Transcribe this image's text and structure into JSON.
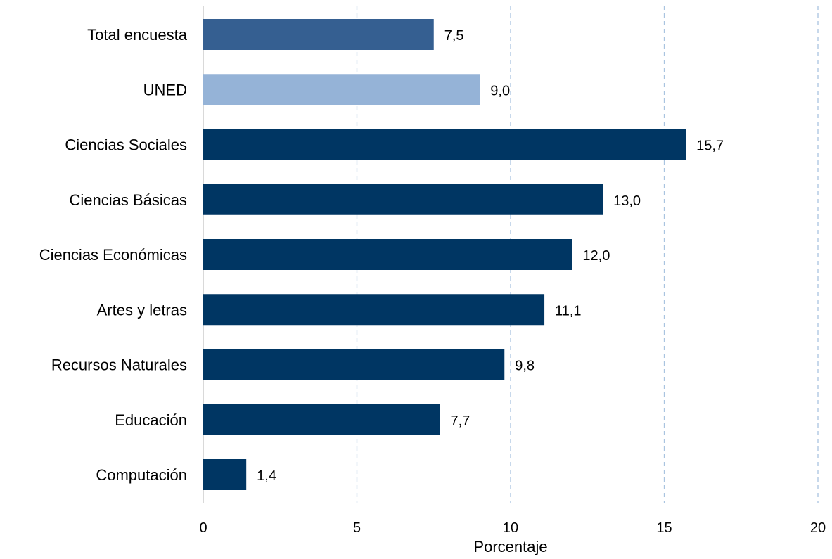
{
  "chart_data": {
    "type": "bar",
    "orientation": "horizontal",
    "categories": [
      "Total encuesta",
      "UNED",
      "Ciencias Sociales",
      "Ciencias Básicas",
      "Ciencias Económicas",
      "Artes y letras",
      "Recursos Naturales",
      "Educación",
      "Computación"
    ],
    "values": [
      7.5,
      9.0,
      15.7,
      13.0,
      12.0,
      11.1,
      9.8,
      7.7,
      1.4
    ],
    "value_labels": [
      "7,5",
      "9,0",
      "15,7",
      "13,0",
      "12,0",
      "11,1",
      "9,8",
      "7,7",
      "1,4"
    ],
    "bar_colors": [
      "#355F91",
      "#95B3D7",
      "#003663",
      "#003663",
      "#003663",
      "#003663",
      "#003663",
      "#003663",
      "#003663"
    ],
    "xlabel": "Porcentaje",
    "ylabel": "",
    "xlim": [
      0,
      20
    ],
    "xticks": [
      0,
      5,
      10,
      15,
      20
    ],
    "xtick_labels": [
      "0",
      "5",
      "10",
      "15",
      "20"
    ],
    "grid": "vertical dashed",
    "grid_color": "#A9C4E0",
    "legend": "none"
  }
}
